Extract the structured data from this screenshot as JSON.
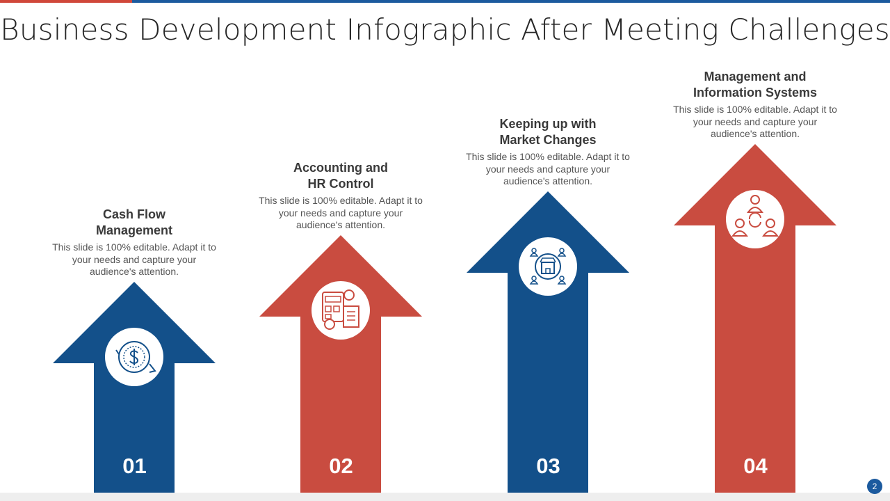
{
  "title": "Business Development Infographic After Meeting Challenges",
  "steps": [
    {
      "number": "01",
      "heading": [
        "Cash Flow",
        "Management"
      ],
      "body": "This slide is 100% editable. Adapt it to your needs and capture your audience's attention."
    },
    {
      "number": "02",
      "heading": [
        "Accounting and",
        "HR Control"
      ],
      "body": "This slide is 100% editable. Adapt it to your needs and capture your audience's attention."
    },
    {
      "number": "03",
      "heading": [
        "Keeping up with",
        "Market Changes"
      ],
      "body": "This slide is 100% editable. Adapt it to your needs and capture your audience's attention."
    },
    {
      "number": "04",
      "heading": [
        "Management and",
        "Information Systems"
      ],
      "body": "This slide is 100% editable. Adapt it to your needs and capture your audience's attention."
    }
  ],
  "page_number": "2"
}
